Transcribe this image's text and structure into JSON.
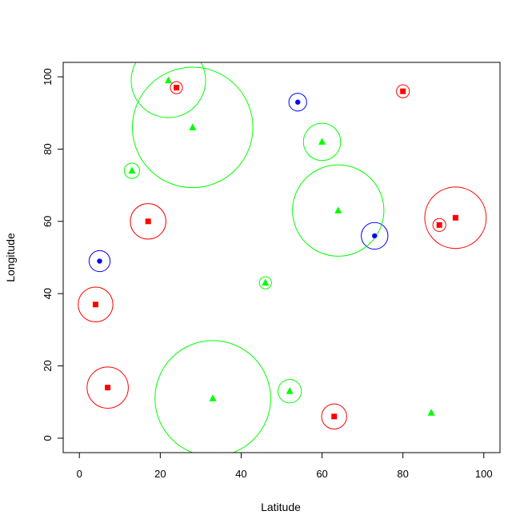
{
  "chart_data": {
    "type": "scatter",
    "title": "",
    "xlabel": "Latitude",
    "ylabel": "Longitude",
    "xlim": [
      -4,
      104
    ],
    "ylim": [
      -4,
      104
    ],
    "xticks": [
      0,
      20,
      40,
      60,
      80,
      100
    ],
    "yticks": [
      0,
      20,
      40,
      60,
      80,
      100
    ],
    "grid": false,
    "colors": {
      "blue": "#0000ff",
      "red": "#ff0000",
      "green": "#00ff00"
    },
    "series": [
      {
        "color": "#0000ff",
        "marker": "circle",
        "points": [
          {
            "x": 54,
            "y": 93,
            "radius": 2.2
          },
          {
            "x": 5,
            "y": 49,
            "radius": 2.6
          },
          {
            "x": 73,
            "y": 56,
            "radius": 3.3
          }
        ]
      },
      {
        "color": "#ff0000",
        "marker": "square",
        "points": [
          {
            "x": 24,
            "y": 97,
            "radius": 1.5
          },
          {
            "x": 80,
            "y": 96,
            "radius": 1.6
          },
          {
            "x": 17,
            "y": 60,
            "radius": 4.4
          },
          {
            "x": 93,
            "y": 61,
            "radius": 7.6
          },
          {
            "x": 89,
            "y": 59,
            "radius": 1.6
          },
          {
            "x": 4,
            "y": 37,
            "radius": 4.3
          },
          {
            "x": 7,
            "y": 14,
            "radius": 5.1
          },
          {
            "x": 63,
            "y": 6,
            "radius": 3.1
          }
        ]
      },
      {
        "color": "#00ff00",
        "marker": "triangle",
        "points": [
          {
            "x": 22,
            "y": 99,
            "radius": 9.2
          },
          {
            "x": 28,
            "y": 86,
            "radius": 14.9
          },
          {
            "x": 60,
            "y": 82,
            "radius": 4.6
          },
          {
            "x": 13,
            "y": 74,
            "radius": 1.9
          },
          {
            "x": 64,
            "y": 63,
            "radius": 11.3
          },
          {
            "x": 46,
            "y": 43,
            "radius": 1.5
          },
          {
            "x": 33,
            "y": 11,
            "radius": 14.3
          },
          {
            "x": 52,
            "y": 13,
            "radius": 2.9
          },
          {
            "x": 87,
            "y": 7,
            "radius": 0
          }
        ]
      }
    ]
  }
}
